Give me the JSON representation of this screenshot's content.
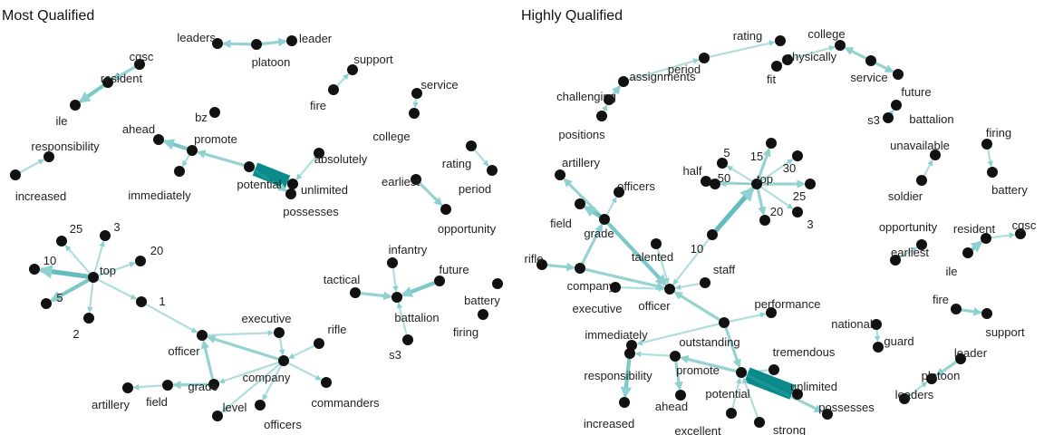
{
  "colors": {
    "edge": "#2aa3a3",
    "edge_strong": "#0a8a8a",
    "node": "#111111",
    "text": "#222222"
  },
  "panels": [
    {
      "title": "Most Qualified",
      "nodes": [
        {
          "id": "leaders",
          "label": "leaders"
        },
        {
          "id": "platoon",
          "label": "platoon"
        },
        {
          "id": "leader",
          "label": "leader"
        },
        {
          "id": "cgsc",
          "label": "cgsc"
        },
        {
          "id": "resident",
          "label": "resident"
        },
        {
          "id": "ile",
          "label": "ile"
        },
        {
          "id": "support",
          "label": "support"
        },
        {
          "id": "fire",
          "label": "fire"
        },
        {
          "id": "service",
          "label": "service"
        },
        {
          "id": "college",
          "label": "college"
        },
        {
          "id": "ahead",
          "label": "ahead"
        },
        {
          "id": "bz",
          "label": "bz"
        },
        {
          "id": "promote",
          "label": "promote"
        },
        {
          "id": "immediately",
          "label": "immediately"
        },
        {
          "id": "potential",
          "label": "potential"
        },
        {
          "id": "absolutely",
          "label": "absolutely"
        },
        {
          "id": "unlimited",
          "label": "unlimited"
        },
        {
          "id": "possesses",
          "label": "possesses"
        },
        {
          "id": "responsibility",
          "label": "responsibility"
        },
        {
          "id": "increased",
          "label": "increased"
        },
        {
          "id": "rating",
          "label": "rating"
        },
        {
          "id": "period",
          "label": "period"
        },
        {
          "id": "earliest",
          "label": "earliest"
        },
        {
          "id": "opportunity",
          "label": "opportunity"
        },
        {
          "id": "t25",
          "label": "25"
        },
        {
          "id": "t3",
          "label": "3"
        },
        {
          "id": "t20",
          "label": "20"
        },
        {
          "id": "t10",
          "label": "10"
        },
        {
          "id": "top",
          "label": "top"
        },
        {
          "id": "t5",
          "label": "5"
        },
        {
          "id": "t2",
          "label": "2"
        },
        {
          "id": "t1",
          "label": "1"
        },
        {
          "id": "infantry",
          "label": "infantry"
        },
        {
          "id": "future",
          "label": "future"
        },
        {
          "id": "tactical",
          "label": "tactical"
        },
        {
          "id": "battalion",
          "label": "battalion"
        },
        {
          "id": "battery",
          "label": "battery"
        },
        {
          "id": "firing",
          "label": "firing"
        },
        {
          "id": "s3",
          "label": "s3"
        },
        {
          "id": "executive",
          "label": "executive"
        },
        {
          "id": "rifle",
          "label": "rifle"
        },
        {
          "id": "officer",
          "label": "officer"
        },
        {
          "id": "company",
          "label": "company"
        },
        {
          "id": "artillery",
          "label": "artillery"
        },
        {
          "id": "field",
          "label": "field"
        },
        {
          "id": "grade",
          "label": "grade"
        },
        {
          "id": "level",
          "label": "level"
        },
        {
          "id": "officers",
          "label": "officers"
        },
        {
          "id": "commanders",
          "label": "commanders"
        }
      ],
      "edges": [
        {
          "from": "platoon",
          "to": "leaders",
          "weight": 2
        },
        {
          "from": "platoon",
          "to": "leader",
          "weight": 2
        },
        {
          "from": "cgsc",
          "to": "resident",
          "weight": 2
        },
        {
          "from": "resident",
          "to": "ile",
          "weight": 3
        },
        {
          "from": "fire",
          "to": "support",
          "weight": 1
        },
        {
          "from": "service",
          "to": "college",
          "weight": 1
        },
        {
          "from": "promote",
          "to": "ahead",
          "weight": 3
        },
        {
          "from": "promote",
          "to": "immediately",
          "weight": 1
        },
        {
          "from": "potential",
          "to": "promote",
          "weight": 2
        },
        {
          "from": "unlimited",
          "to": "potential",
          "weight": 8
        },
        {
          "from": "absolutely",
          "to": "unlimited",
          "weight": 1
        },
        {
          "from": "potential",
          "to": "possesses",
          "weight": 2
        },
        {
          "from": "increased",
          "to": "responsibility",
          "weight": 1
        },
        {
          "from": "rating",
          "to": "period",
          "weight": 1
        },
        {
          "from": "earliest",
          "to": "opportunity",
          "weight": 2
        },
        {
          "from": "top",
          "to": "t25",
          "weight": 1
        },
        {
          "from": "top",
          "to": "t3",
          "weight": 1
        },
        {
          "from": "top",
          "to": "t20",
          "weight": 1
        },
        {
          "from": "top",
          "to": "t10",
          "weight": 4
        },
        {
          "from": "top",
          "to": "t5",
          "weight": 3
        },
        {
          "from": "top",
          "to": "t2",
          "weight": 1
        },
        {
          "from": "top",
          "to": "t1",
          "weight": 1
        },
        {
          "from": "t1",
          "to": "officer",
          "weight": 1
        },
        {
          "from": "infantry",
          "to": "battalion",
          "weight": 1
        },
        {
          "from": "tactical",
          "to": "battalion",
          "weight": 2
        },
        {
          "from": "future",
          "to": "battalion",
          "weight": 3
        },
        {
          "from": "s3",
          "to": "battalion",
          "weight": 1
        },
        {
          "from": "officer",
          "to": "executive",
          "weight": 1
        },
        {
          "from": "company",
          "to": "officer",
          "weight": 2
        },
        {
          "from": "rifle",
          "to": "company",
          "weight": 1
        },
        {
          "from": "company",
          "to": "grade",
          "weight": 1
        },
        {
          "from": "grade",
          "to": "field",
          "weight": 2
        },
        {
          "from": "field",
          "to": "artillery",
          "weight": 1
        },
        {
          "from": "grade",
          "to": "officer",
          "weight": 2
        },
        {
          "from": "company",
          "to": "level",
          "weight": 1
        },
        {
          "from": "company",
          "to": "officers",
          "weight": 1
        },
        {
          "from": "company",
          "to": "commanders",
          "weight": 1
        },
        {
          "from": "executive",
          "to": "company",
          "weight": 1
        }
      ]
    },
    {
      "title": "Highly Qualified",
      "nodes": [
        {
          "id": "rating",
          "label": "rating"
        },
        {
          "id": "period",
          "label": "period"
        },
        {
          "id": "assignments",
          "label": "assignments"
        },
        {
          "id": "challenging",
          "label": "challenging"
        },
        {
          "id": "positions",
          "label": "positions"
        },
        {
          "id": "physically",
          "label": "physically"
        },
        {
          "id": "fit",
          "label": "fit"
        },
        {
          "id": "college",
          "label": "college"
        },
        {
          "id": "service",
          "label": "service"
        },
        {
          "id": "future",
          "label": "future"
        },
        {
          "id": "s3",
          "label": "s3"
        },
        {
          "id": "battalion",
          "label": "battalion"
        },
        {
          "id": "unavailable",
          "label": "unavailable"
        },
        {
          "id": "soldier",
          "label": "soldier"
        },
        {
          "id": "firing",
          "label": "firing"
        },
        {
          "id": "battery",
          "label": "battery"
        },
        {
          "id": "n5",
          "label": "5"
        },
        {
          "id": "n15",
          "label": "15"
        },
        {
          "id": "half",
          "label": "half"
        },
        {
          "id": "n50",
          "label": "50"
        },
        {
          "id": "top",
          "label": "top"
        },
        {
          "id": "n30",
          "label": "30"
        },
        {
          "id": "n25",
          "label": "25"
        },
        {
          "id": "n20",
          "label": "20"
        },
        {
          "id": "n3",
          "label": "3"
        },
        {
          "id": "n10",
          "label": "10"
        },
        {
          "id": "artillery",
          "label": "artillery"
        },
        {
          "id": "officers",
          "label": "officers"
        },
        {
          "id": "field",
          "label": "field"
        },
        {
          "id": "grade",
          "label": "grade"
        },
        {
          "id": "talented",
          "label": "talented"
        },
        {
          "id": "rifle",
          "label": "rifle"
        },
        {
          "id": "staff",
          "label": "staff"
        },
        {
          "id": "company",
          "label": "company"
        },
        {
          "id": "officer",
          "label": "officer"
        },
        {
          "id": "executive",
          "label": "executive"
        },
        {
          "id": "opportunity",
          "label": "opportunity"
        },
        {
          "id": "earliest",
          "label": "earliest"
        },
        {
          "id": "resident",
          "label": "resident"
        },
        {
          "id": "cgsc",
          "label": "cgsc"
        },
        {
          "id": "ile",
          "label": "ile"
        },
        {
          "id": "performance",
          "label": "performance"
        },
        {
          "id": "immediately",
          "label": "immediately"
        },
        {
          "id": "outstanding",
          "label": "outstanding"
        },
        {
          "id": "national",
          "label": "national"
        },
        {
          "id": "guard",
          "label": "guard"
        },
        {
          "id": "fire",
          "label": "fire"
        },
        {
          "id": "support",
          "label": "support"
        },
        {
          "id": "tremendous",
          "label": "tremendous"
        },
        {
          "id": "responsibility",
          "label": "responsibility"
        },
        {
          "id": "promote",
          "label": "promote"
        },
        {
          "id": "leader",
          "label": "leader"
        },
        {
          "id": "platoon",
          "label": "platoon"
        },
        {
          "id": "leaders",
          "label": "leaders"
        },
        {
          "id": "potential",
          "label": "potential"
        },
        {
          "id": "unlimited",
          "label": "unlimited"
        },
        {
          "id": "possesses",
          "label": "possesses"
        },
        {
          "id": "ahead",
          "label": "ahead"
        },
        {
          "id": "increased",
          "label": "increased"
        },
        {
          "id": "excellent",
          "label": "excellent"
        },
        {
          "id": "strong",
          "label": "strong"
        }
      ],
      "edges": [
        {
          "from": "period",
          "to": "rating",
          "weight": 1
        },
        {
          "from": "challenging",
          "to": "assignments",
          "weight": 2
        },
        {
          "from": "assignments",
          "to": "period",
          "weight": 1
        },
        {
          "from": "positions",
          "to": "challenging",
          "weight": 1
        },
        {
          "from": "fit",
          "to": "physically",
          "weight": 1
        },
        {
          "from": "physically",
          "to": "college",
          "weight": 1
        },
        {
          "from": "service",
          "to": "college",
          "weight": 2
        },
        {
          "from": "service",
          "to": "future",
          "weight": 2
        },
        {
          "from": "s3",
          "to": "battalion",
          "weight": 1
        },
        {
          "from": "soldier",
          "to": "unavailable",
          "weight": 1
        },
        {
          "from": "firing",
          "to": "battery",
          "weight": 1
        },
        {
          "from": "top",
          "to": "n5",
          "weight": 1
        },
        {
          "from": "top",
          "to": "n15",
          "weight": 2
        },
        {
          "from": "top",
          "to": "half",
          "weight": 1
        },
        {
          "from": "top",
          "to": "n50",
          "weight": 1
        },
        {
          "from": "top",
          "to": "n30",
          "weight": 1
        },
        {
          "from": "top",
          "to": "n25",
          "weight": 2
        },
        {
          "from": "top",
          "to": "n20",
          "weight": 2
        },
        {
          "from": "top",
          "to": "n3",
          "weight": 1
        },
        {
          "from": "n10",
          "to": "top",
          "weight": 4
        },
        {
          "from": "n10",
          "to": "officer",
          "weight": 1
        },
        {
          "from": "grade",
          "to": "artillery",
          "weight": 2
        },
        {
          "from": "grade",
          "to": "officers",
          "weight": 1
        },
        {
          "from": "grade",
          "to": "field",
          "weight": 3
        },
        {
          "from": "company",
          "to": "grade",
          "weight": 2
        },
        {
          "from": "grade",
          "to": "officer",
          "weight": 3
        },
        {
          "from": "talented",
          "to": "officer",
          "weight": 1
        },
        {
          "from": "rifle",
          "to": "company",
          "weight": 2
        },
        {
          "from": "staff",
          "to": "officer",
          "weight": 1
        },
        {
          "from": "executive",
          "to": "officer",
          "weight": 1
        },
        {
          "from": "company",
          "to": "officer",
          "weight": 2
        },
        {
          "from": "earliest",
          "to": "opportunity",
          "weight": 1
        },
        {
          "from": "resident",
          "to": "cgsc",
          "weight": 1
        },
        {
          "from": "ile",
          "to": "resident",
          "weight": 3
        },
        {
          "from": "outstanding",
          "to": "officer",
          "weight": 2
        },
        {
          "from": "outstanding",
          "to": "performance",
          "weight": 1
        },
        {
          "from": "outstanding",
          "to": "immediately",
          "weight": 1
        },
        {
          "from": "outstanding",
          "to": "potential",
          "weight": 2
        },
        {
          "from": "national",
          "to": "guard",
          "weight": 1
        },
        {
          "from": "fire",
          "to": "support",
          "weight": 2
        },
        {
          "from": "tremendous",
          "to": "potential",
          "weight": 1
        },
        {
          "from": "promote",
          "to": "responsibility",
          "weight": 1
        },
        {
          "from": "promote",
          "to": "ahead",
          "weight": 2
        },
        {
          "from": "potential",
          "to": "promote",
          "weight": 2
        },
        {
          "from": "leader",
          "to": "platoon",
          "weight": 2
        },
        {
          "from": "leaders",
          "to": "platoon",
          "weight": 1
        },
        {
          "from": "unlimited",
          "to": "potential",
          "weight": 9
        },
        {
          "from": "potential",
          "to": "possesses",
          "weight": 2
        },
        {
          "from": "responsibility",
          "to": "increased",
          "weight": 3
        },
        {
          "from": "excellent",
          "to": "potential",
          "weight": 1
        },
        {
          "from": "strong",
          "to": "potential",
          "weight": 1
        }
      ]
    }
  ]
}
